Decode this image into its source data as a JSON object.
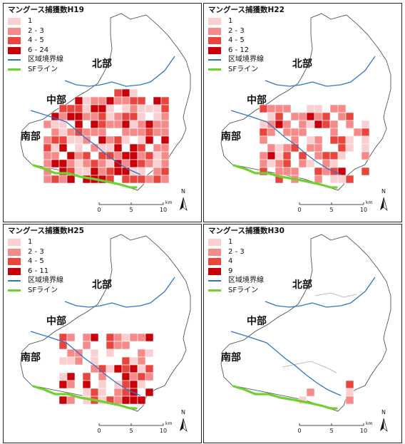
{
  "regions": {
    "north": "北部",
    "central": "中部",
    "south": "南部"
  },
  "boundary_label": "区域境界線",
  "sf_label": "SFライン",
  "scale": {
    "ticks": [
      "0",
      "5",
      "10"
    ],
    "unit": "km"
  },
  "north_arrow": "N",
  "colors": {
    "c1": "#fbcfcf",
    "c2": "#f58a88",
    "c3": "#e8453f",
    "c4": "#c8000a",
    "boundary": "#2f74c8",
    "sf": "#6fd12d",
    "outline": "#444444"
  },
  "panels": [
    {
      "title": "マングース捕獲数H19",
      "legend": [
        {
          "label": "1",
          "color": "c1"
        },
        {
          "label": "2 - 3",
          "color": "c2"
        },
        {
          "label": "4 - 5",
          "color": "c3"
        },
        {
          "label": "6 - 24",
          "color": "c4"
        }
      ]
    },
    {
      "title": "マングース捕獲数H22",
      "legend": [
        {
          "label": "1",
          "color": "c1"
        },
        {
          "label": "2 - 3",
          "color": "c2"
        },
        {
          "label": "4 - 5",
          "color": "c3"
        },
        {
          "label": "6 - 12",
          "color": "c4"
        }
      ]
    },
    {
      "title": "マングース捕獲数H25",
      "legend": [
        {
          "label": "1",
          "color": "c1"
        },
        {
          "label": "2 - 3",
          "color": "c2"
        },
        {
          "label": "4 - 5",
          "color": "c3"
        },
        {
          "label": "6 - 11",
          "color": "c4"
        }
      ]
    },
    {
      "title": "マングース捕獲数H30",
      "legend": [
        {
          "label": "1",
          "color": "c1"
        },
        {
          "label": "2 - 3",
          "color": "c2"
        },
        {
          "label": "4",
          "color": "c3"
        },
        {
          "label": "9",
          "color": "c4"
        }
      ]
    }
  ]
}
